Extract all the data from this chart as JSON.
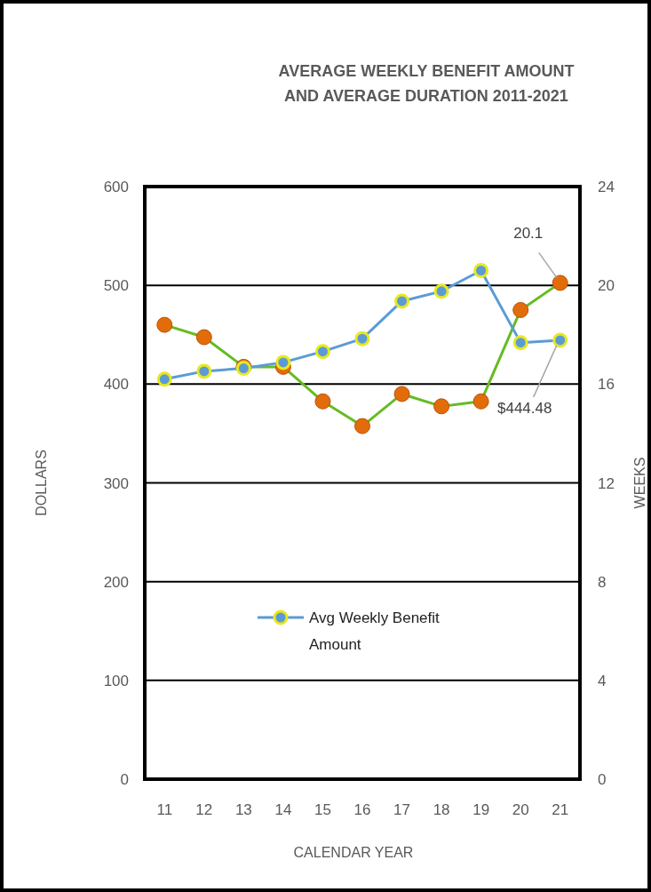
{
  "chart_data": {
    "type": "line",
    "title": "AVERAGE WEEKLY BENEFIT AMOUNT AND AVERAGE DURATION 2011-2021",
    "xlabel": "CALENDAR YEAR",
    "ylabel": "DOLLARS",
    "y2label": "WEEKS",
    "categories": [
      "11",
      "12",
      "13",
      "14",
      "15",
      "16",
      "17",
      "18",
      "19",
      "20",
      "21"
    ],
    "series": [
      {
        "name": "Avg Weekly Benefit Amount",
        "color": "#5b9bd5",
        "values": [
          405,
          413,
          416,
          422,
          433,
          446,
          484,
          494,
          515,
          442,
          444.48
        ],
        "value_labels": [
          null,
          null,
          null,
          null,
          null,
          null,
          null,
          null,
          null,
          null,
          "$444.48"
        ]
      },
      {
        "type": "line",
        "axis": "y2",
        "color": "#66bb22",
        "colors": [
          "#e36c0a",
          "#e36c0a",
          "#e36c0a",
          "#e36c0a",
          "#e36c0a",
          "#e36c0a",
          "#e36c0a",
          "#e36c0a",
          "#e36c0a",
          "#e36c0a",
          "#e36c0a"
        ],
        "values": [
          18.4,
          17.9,
          16.7,
          16.7,
          15.3,
          14.3,
          15.6,
          15.1,
          15.3,
          19.0,
          20.1
        ],
        "value_labels": [
          null,
          null,
          null,
          null,
          null,
          null,
          null,
          null,
          null,
          null,
          "20.1"
        ]
      }
    ],
    "ylim": [
      0,
      600
    ],
    "yticks": [
      0,
      100,
      200,
      300,
      400,
      500,
      600
    ],
    "y2lim": [
      0,
      24
    ],
    "y2ticks": [
      0,
      4,
      8,
      12,
      16,
      20,
      24
    ],
    "grid": "y",
    "legend": "bottom",
    "marker": "circle"
  }
}
